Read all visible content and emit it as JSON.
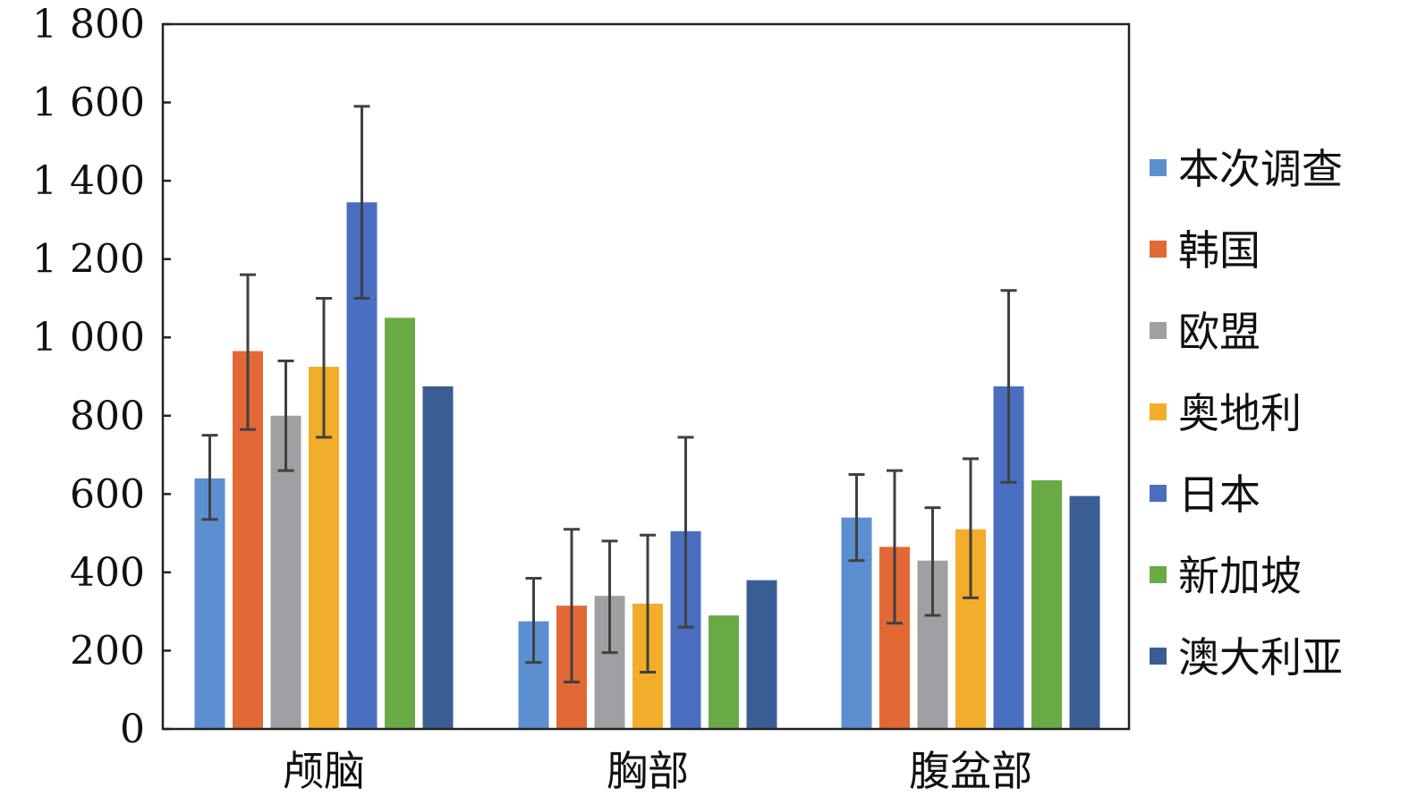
{
  "chart_data": {
    "type": "bar",
    "categories": [
      "颅脑",
      "胸部",
      "腹盆部"
    ],
    "y_ticks": [
      "0",
      "200",
      "400",
      "600",
      "800",
      "1 000",
      "1 200",
      "1 400",
      "1 600",
      "1 800"
    ],
    "ylim": [
      0,
      1800
    ],
    "grid": false,
    "legend_position": "right",
    "series": [
      {
        "name": "本次调查",
        "color": "#5B8FCF",
        "values": [
          640,
          275,
          540
        ],
        "errors": [
          [
            535,
            750
          ],
          [
            170,
            385
          ],
          [
            430,
            650
          ]
        ]
      },
      {
        "name": "韩国",
        "color": "#E26935",
        "values": [
          965,
          315,
          465
        ],
        "errors": [
          [
            765,
            1160
          ],
          [
            120,
            510
          ],
          [
            270,
            660
          ]
        ]
      },
      {
        "name": "欧盟",
        "color": "#9EA0A3",
        "values": [
          800,
          340,
          430
        ],
        "errors": [
          [
            660,
            940
          ],
          [
            195,
            480
          ],
          [
            290,
            565
          ]
        ]
      },
      {
        "name": "奥地利",
        "color": "#F2AE2B",
        "values": [
          925,
          320,
          510
        ],
        "errors": [
          [
            745,
            1100
          ],
          [
            145,
            495
          ],
          [
            335,
            690
          ]
        ]
      },
      {
        "name": "日本",
        "color": "#4A6EC0",
        "values": [
          1345,
          505,
          875
        ],
        "errors": [
          [
            1100,
            1590
          ],
          [
            260,
            745
          ],
          [
            630,
            1120
          ]
        ]
      },
      {
        "name": "新加坡",
        "color": "#6AAA46",
        "values": [
          1050,
          290,
          635
        ],
        "errors": null
      },
      {
        "name": "澳大利亚",
        "color": "#3A5E93",
        "values": [
          875,
          380,
          595
        ],
        "errors": null
      }
    ]
  }
}
